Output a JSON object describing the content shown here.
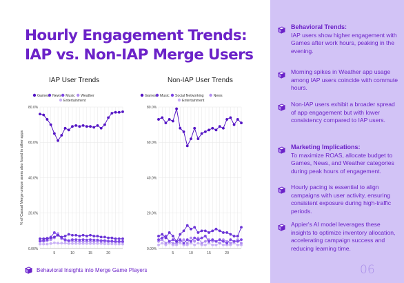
{
  "page": {
    "title": "Hourly Engagement Trends: IAP vs. Non-IAP Merge Users",
    "footer": "Behavioral Insights into Merge Game Players",
    "page_number": "06"
  },
  "colors": {
    "accent": "#6b22c8",
    "panel": "#d2c3f6"
  },
  "sidebar": {
    "items": [
      {
        "heading": "Behavioral Trends:",
        "text": "IAP users show higher engagement with Games after work hours, peaking in the evening."
      },
      {
        "heading": "",
        "text": "Morning spikes in Weather app usage among IAP users coincide with commute hours."
      },
      {
        "heading": "",
        "text": "Non-IAP users exhibit a broader spread of app engagement but with lower consistency compared to IAP users."
      },
      {
        "heading": "Marketing Implications:",
        "text": "To maximize ROAS, allocate budget to Games, News, and Weather categories during peak hours of engagement."
      },
      {
        "heading": "",
        "text": "Hourly pacing is essential to align campaigns with user activity, ensuring consistent exposure during high-traffic periods."
      },
      {
        "heading": "",
        "text": "Appier's AI model leverages these insights to optimize inventory allocation, accelerating campaign success and reducing learning time."
      }
    ]
  },
  "chart_data": [
    {
      "type": "line",
      "title": "IAP User Trends",
      "ylabel": "% of Casual Merge unique users also found in other apps",
      "ylim": [
        0,
        80
      ],
      "yticks": [
        "0.00%",
        "20.0%",
        "40.0%",
        "60.0%",
        "80.0%"
      ],
      "xticks": [
        5,
        10,
        15,
        20
      ],
      "x": [
        1,
        2,
        3,
        4,
        5,
        6,
        7,
        8,
        9,
        10,
        11,
        12,
        13,
        14,
        15,
        16,
        17,
        18,
        19,
        20,
        21,
        22,
        23,
        24
      ],
      "series": [
        {
          "name": "Games",
          "color": "#5314c4",
          "values": [
            76,
            75.5,
            73,
            70,
            65,
            61,
            64,
            68,
            67,
            69,
            69.5,
            69,
            69.5,
            69,
            69,
            68.5,
            69.5,
            68,
            70,
            74,
            76.5,
            77,
            77,
            77.3
          ]
        },
        {
          "name": "News",
          "color": "#6a34d6",
          "values": [
            5.5,
            5.5,
            5.8,
            6,
            6.5,
            7.5,
            6.5,
            7,
            8,
            7.5,
            7.5,
            7,
            7.5,
            7,
            7.5,
            7,
            7,
            6.5,
            6.5,
            6,
            6,
            5.5,
            5.5,
            5.5
          ]
        },
        {
          "name": "Music",
          "color": "#7c46e4",
          "values": [
            4.2,
            4.5,
            5,
            6.5,
            9,
            7.5,
            6,
            5,
            4.5,
            5,
            5,
            4.8,
            5,
            4.8,
            5,
            4.8,
            4.8,
            4.5,
            4.5,
            4.2,
            4.2,
            4,
            4,
            4
          ]
        },
        {
          "name": "Weather",
          "color": "#b08df0",
          "values": [
            4,
            4,
            4.3,
            5,
            6,
            8.5,
            5.5,
            4.5,
            4.2,
            4.2,
            4,
            4,
            4,
            4,
            4,
            4,
            4,
            3.8,
            3.8,
            3.8,
            3.8,
            3.6,
            3.6,
            3.6
          ]
        },
        {
          "name": "Entertainment",
          "color": "#c9b2f5",
          "values": [
            2.5,
            2.5,
            2.5,
            2.8,
            3.2,
            3,
            3,
            3,
            2.8,
            2.8,
            2.8,
            2.8,
            2.8,
            2.8,
            2.8,
            2.8,
            2.8,
            2.8,
            2.6,
            2.6,
            2.6,
            2.5,
            2.5,
            2.5
          ]
        }
      ]
    },
    {
      "type": "line",
      "title": "Non-IAP User Trends",
      "ylim": [
        0,
        80
      ],
      "yticks": [
        "0.00%",
        "20.0%",
        "40.0%",
        "60.0%",
        "80.0%"
      ],
      "xticks": [
        5,
        10,
        15,
        20
      ],
      "x": [
        1,
        2,
        3,
        4,
        5,
        6,
        7,
        8,
        9,
        10,
        11,
        12,
        13,
        14,
        15,
        16,
        17,
        18,
        19,
        20,
        21,
        22,
        23,
        24
      ],
      "series": [
        {
          "name": "Games",
          "color": "#5314c4",
          "values": [
            73,
            74,
            71,
            73,
            72,
            79,
            68,
            66,
            58,
            62,
            68,
            62,
            65,
            66,
            67,
            68,
            67,
            69,
            68,
            73,
            74,
            70,
            73,
            71
          ]
        },
        {
          "name": "Music",
          "color": "#6a34d6",
          "values": [
            7,
            8,
            6,
            9,
            7,
            4,
            8,
            10,
            13,
            11,
            12,
            9,
            10,
            10,
            9,
            10,
            11,
            10,
            9,
            9,
            8,
            7,
            7,
            12
          ]
        },
        {
          "name": "Social Networking",
          "color": "#7c46e4",
          "values": [
            5,
            6,
            7,
            4,
            5,
            4,
            5,
            3,
            5,
            4,
            6,
            5,
            6,
            7,
            4,
            5,
            4,
            5,
            4,
            3,
            5,
            4,
            4,
            5
          ]
        },
        {
          "name": "News",
          "color": "#b08df0",
          "values": [
            4,
            5,
            3,
            4,
            3,
            3,
            4,
            5,
            3,
            6,
            4,
            6,
            3,
            4,
            5,
            4,
            4,
            3,
            5,
            4,
            3,
            4,
            5,
            3
          ]
        },
        {
          "name": "Entertainment",
          "color": "#c9b2f5",
          "values": [
            2,
            3,
            2,
            3,
            2,
            2,
            3,
            2,
            2,
            3,
            2,
            3,
            2,
            2,
            3,
            2,
            2,
            3,
            2,
            2,
            2,
            3,
            2,
            2
          ]
        }
      ]
    }
  ]
}
